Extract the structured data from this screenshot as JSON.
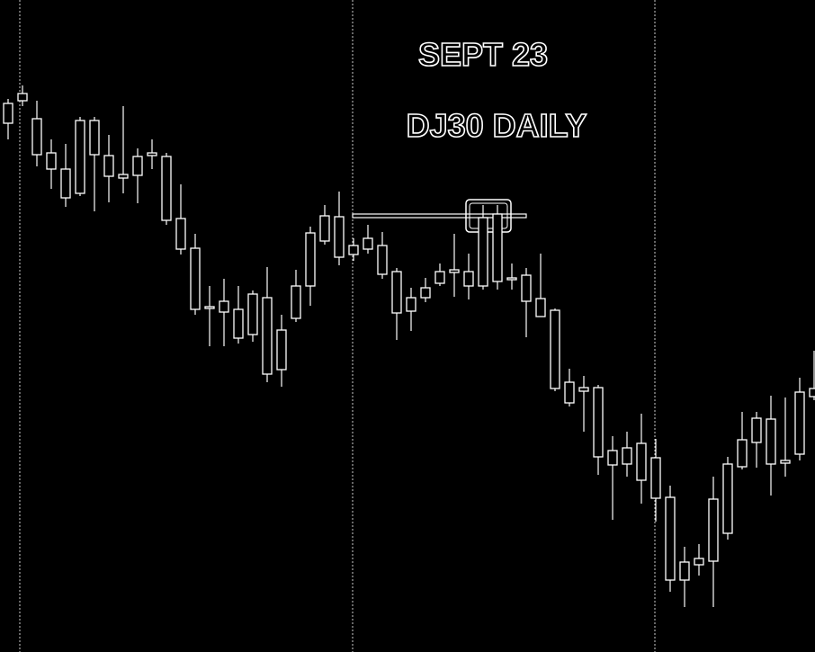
{
  "chart_data": {
    "type": "candlestick",
    "title": "SEPT 23",
    "subtitle": "DJ30 DAILY",
    "ylim": [
      0,
      725
    ],
    "color": "#ffffff",
    "high": [
      615,
      630,
      613,
      570,
      565,
      595,
      595,
      575,
      607,
      560,
      570,
      555,
      520,
      465,
      407,
      415,
      407,
      402,
      428,
      375,
      425,
      473,
      497,
      512,
      460,
      475,
      467,
      427,
      405,
      416,
      432,
      465,
      443,
      497,
      497,
      432,
      427,
      443,
      382,
      315,
      307,
      297,
      240,
      245,
      265,
      237,
      185,
      117,
      120,
      195,
      217,
      267,
      267,
      285,
      283,
      305,
      335
    ],
    "open": [
      588,
      613,
      553,
      537,
      505,
      510,
      553,
      529,
      527,
      530,
      552,
      480,
      448,
      381,
      382,
      378,
      349,
      353,
      309,
      314,
      371,
      407,
      457,
      439,
      442,
      448,
      420,
      377,
      379,
      394,
      410,
      422,
      407,
      407,
      412,
      414,
      390,
      373,
      293,
      277,
      290,
      217,
      208,
      209,
      191,
      171,
      80,
      80,
      97,
      101,
      132,
      206,
      233,
      209,
      210,
      220,
      284
    ],
    "close": [
      610,
      621,
      593,
      555,
      537,
      591,
      591,
      552,
      531,
      551,
      555,
      551,
      482,
      449,
      384,
      390,
      381,
      398,
      394,
      358,
      407,
      466,
      485,
      484,
      452,
      460,
      452,
      423,
      394,
      405,
      423,
      425,
      423,
      483,
      487,
      416,
      419,
      393,
      380,
      300,
      294,
      294,
      224,
      227,
      232,
      216,
      172,
      100,
      104,
      170,
      209,
      236,
      260,
      259,
      213,
      289,
      293
    ],
    "low": [
      570,
      607,
      540,
      515,
      495,
      507,
      490,
      500,
      510,
      499,
      537,
      475,
      442,
      375,
      340,
      340,
      343,
      345,
      300,
      295,
      367,
      385,
      453,
      430,
      435,
      443,
      415,
      347,
      357,
      389,
      407,
      395,
      392,
      403,
      403,
      403,
      350,
      373,
      290,
      273,
      245,
      197,
      147,
      195,
      165,
      145,
      67,
      50,
      85,
      50,
      125,
      203,
      205,
      174,
      195,
      213,
      280
    ]
  }
}
